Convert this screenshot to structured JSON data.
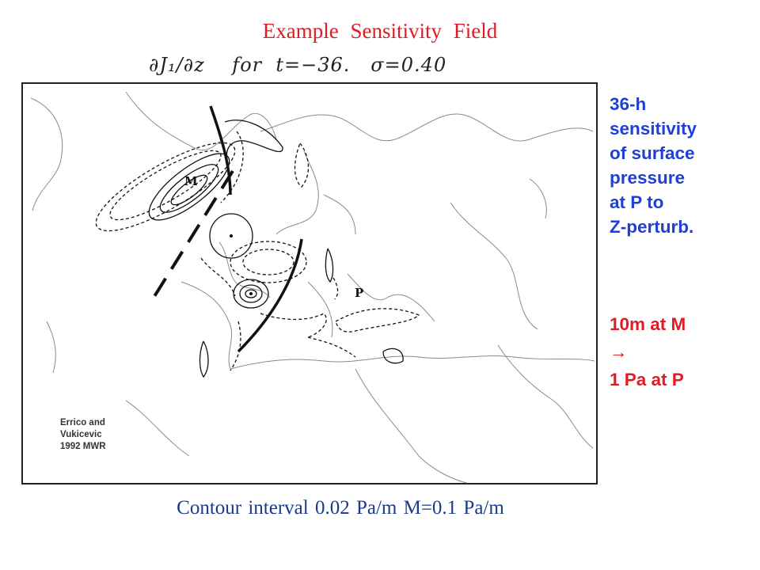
{
  "slide": {
    "title": "Example  Sensitivity  Field",
    "map_heading": "∂J₁/∂z    for  t=−36.   σ=0.40",
    "credit": [
      "Errico and",
      "Vukicevic",
      "1992 MWR"
    ],
    "side_note": [
      "36-h",
      "sensitivity",
      "of surface",
      "pressure",
      "at P to",
      "Z-perturb."
    ],
    "side_note_red": [
      "10m at M",
      "→",
      "1 Pa at P"
    ],
    "caption": "Contour interval 0.02 Pa/m   M=0.1 Pa/m"
  },
  "map": {
    "label_m": "M",
    "label_p": "P"
  },
  "colors": {
    "title": "#e01b24",
    "side_note": "#1f3fd6",
    "side_note_red": "#e01b24",
    "caption": "#1a3a8a"
  }
}
